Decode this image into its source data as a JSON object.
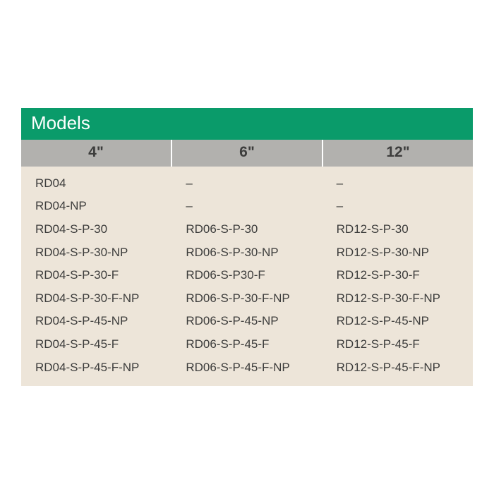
{
  "table": {
    "title": "Models",
    "columns": [
      "4\"",
      "6\"",
      "12\""
    ],
    "rows": [
      [
        "RD04",
        "–",
        "–"
      ],
      [
        "RD04-NP",
        "–",
        "–"
      ],
      [
        "RD04-S-P-30",
        "RD06-S-P-30",
        "RD12-S-P-30"
      ],
      [
        "RD04-S-P-30-NP",
        "RD06-S-P-30-NP",
        "RD12-S-P-30-NP"
      ],
      [
        "RD04-S-P-30-F",
        "RD06-S-P30-F",
        "RD12-S-P-30-F"
      ],
      [
        "RD04-S-P-30-F-NP",
        "RD06-S-P-30-F-NP",
        "RD12-S-P-30-F-NP"
      ],
      [
        "RD04-S-P-45-NP",
        "RD06-S-P-45-NP",
        "RD12-S-P-45-NP"
      ],
      [
        "RD04-S-P-45-F",
        "RD06-S-P-45-F",
        "RD12-S-P-45-F"
      ],
      [
        "RD04-S-P-45-F-NP",
        "RD06-S-P-45-F-NP",
        "RD12-S-P-45-F-NP"
      ]
    ],
    "style": {
      "title_bg": "#0a9b6a",
      "title_color": "#ffffff",
      "header_bg": "#b2b1ae",
      "header_text": "#3d3d3c",
      "body_bg": "#ede5d9",
      "body_text": "#3d3d3c",
      "title_fontsize": 26,
      "header_fontsize": 21,
      "body_fontsize": 17
    }
  }
}
